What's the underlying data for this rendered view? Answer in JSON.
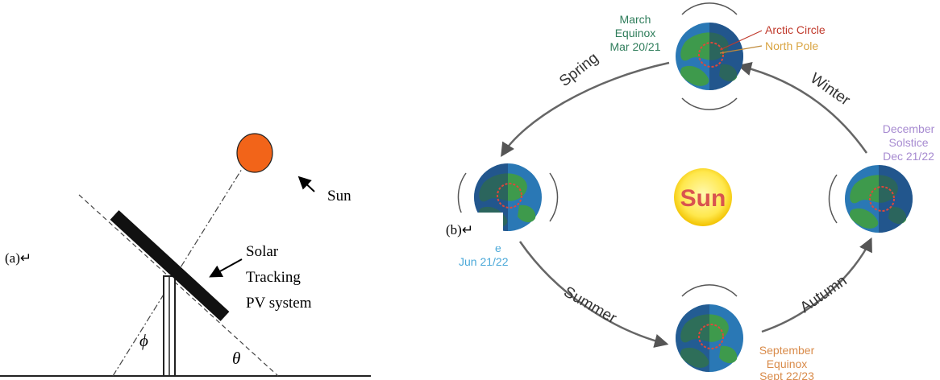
{
  "panel_a": {
    "tag": "(a)↵",
    "sun_label": "Sun",
    "system_label": [
      "Solar",
      "Tracking",
      "PV system"
    ],
    "angle_phi": "ϕ",
    "angle_theta": "θ",
    "colors": {
      "sun": "#f26419",
      "panel": "#111111"
    }
  },
  "panel_b": {
    "tag": "(b)↵",
    "sun_label": "Sun",
    "seasons": {
      "spring": "Spring",
      "winter": "Winter",
      "summer": "Summer",
      "autumn": "Autumn"
    },
    "march": [
      "March",
      "Equinox",
      "Mar 20/21"
    ],
    "arctic_circle": "Arctic Circle",
    "north_pole": "North Pole",
    "december": [
      "December",
      "Solstice",
      "Dec 21/22"
    ],
    "june": [
      "Jun 21/22"
    ],
    "june_partial": "e",
    "september": [
      "September",
      "Equinox",
      "Sept 22/23"
    ],
    "colors": {
      "march": "#2f7d5b",
      "arctic": "#c0392b",
      "north_pole": "#d9a441",
      "december": "#a78bd1",
      "june": "#4aa8d8",
      "september": "#d98b4a",
      "sun_fill": "#ffe84d",
      "sun_text": "#d9534f"
    }
  }
}
